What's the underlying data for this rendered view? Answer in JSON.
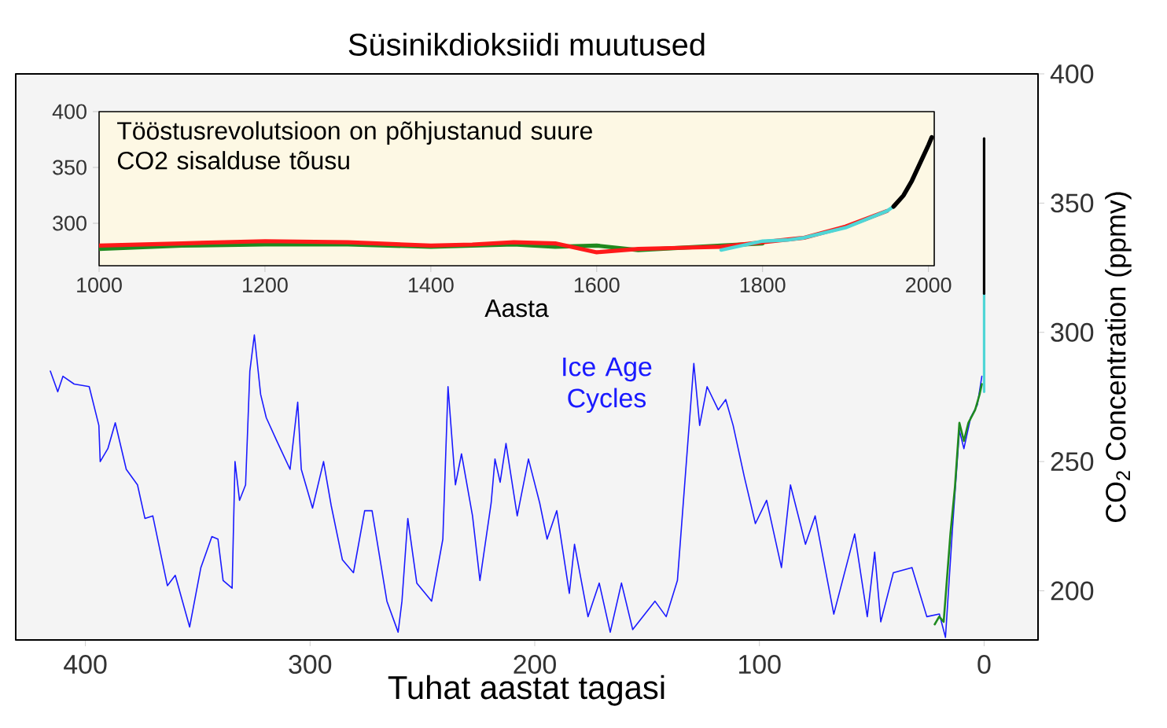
{
  "chart_data": [
    {
      "type": "line",
      "title": "Süsinikdioksiidi muutused",
      "xlabel": "Tuhat aastat tagasi",
      "ylabel": "CO$_{2}$ Concentration (ppmv)",
      "xlim": [
        431,
        -24
      ],
      "ylim": [
        181,
        400
      ],
      "xticks": [
        400,
        300,
        200,
        100,
        0
      ],
      "yticks": [
        200,
        250,
        300,
        350,
        400
      ],
      "marker": "none",
      "series": [
        {
          "name": "Ice Age Cycles",
          "color": "#1a1aff",
          "x": [
            415.6,
            412.3,
            410,
            405,
            398.3,
            394,
            393.4,
            390,
            386.7,
            381.8,
            376.8,
            373.5,
            370,
            363.5,
            360,
            353.6,
            348.6,
            343.7,
            341,
            338.7,
            334.7,
            333.4,
            331.4,
            328.7,
            326.8,
            324.8,
            322,
            319.5,
            314.8,
            308.9,
            305.5,
            303.9,
            298.9,
            294,
            290.6,
            285.6,
            280.7,
            275.7,
            272.4,
            265.8,
            260.8,
            259.1,
            256.5,
            252.5,
            245.9,
            240.9,
            238.6,
            235.3,
            232.6,
            227.7,
            224.4,
            219.4,
            217.7,
            215.4,
            212.8,
            207.8,
            202.8,
            197.8,
            194.5,
            190.2,
            184.6,
            182.3,
            176.3,
            171.3,
            166.4,
            161.4,
            156.4,
            146.5,
            141.5,
            136.5,
            129.2,
            126.6,
            123.3,
            118.3,
            115,
            111.7,
            106.7,
            101.8,
            96.8,
            90.2,
            86.2,
            79.5,
            75.2,
            66.9,
            57.6,
            52,
            48.7,
            46,
            40.4,
            32.1,
            25.5,
            19.9,
            17.2,
            14,
            11,
            9,
            6,
            3,
            1
          ],
          "values": [
            285,
            277,
            283,
            280,
            279,
            264,
            250,
            255,
            265,
            247,
            241,
            228,
            229,
            202,
            206,
            186,
            209,
            221,
            220,
            204,
            201,
            250,
            235,
            241,
            285,
            299,
            276,
            267,
            258,
            247,
            273,
            247,
            232,
            250,
            233,
            212,
            207,
            231,
            231,
            196,
            184,
            196,
            228,
            203,
            196,
            220,
            279,
            241,
            253,
            229,
            204,
            234,
            251,
            242,
            257,
            229,
            251,
            234,
            220,
            231,
            199,
            218,
            190,
            203,
            184,
            203,
            185,
            196,
            190,
            204,
            288,
            264,
            279,
            270,
            274,
            264,
            244,
            226,
            235,
            209,
            241,
            218,
            229,
            191,
            222,
            190,
            215,
            188,
            207,
            209,
            190,
            191,
            182,
            225,
            262,
            255,
            267,
            272,
            283
          ]
        },
        {
          "color": "#1f8a1f",
          "x": [
            22,
            20,
            18,
            15,
            13,
            11,
            9,
            7,
            4,
            2,
            1
          ],
          "values": [
            187,
            190,
            188,
            222,
            240,
            265,
            258,
            265,
            270,
            276,
            280
          ]
        },
        {
          "color": "#4fd6d6",
          "x": [
            0,
            0
          ],
          "values": [
            277,
            315
          ]
        },
        {
          "color": "#000000",
          "x": [
            0,
            0
          ],
          "values": [
            315,
            375
          ]
        }
      ]
    },
    {
      "type": "line",
      "xlabel": "Aasta",
      "xlim": [
        1000,
        2007
      ],
      "ylim": [
        262,
        400
      ],
      "xticks": [
        1000,
        1200,
        1400,
        1600,
        1800,
        2000
      ],
      "yticks": [
        300,
        350,
        400
      ],
      "marker": "none",
      "annotations": [
        "Tööstusrevolutsioon on põhjustanud suure CO2 sisalduse tõusu"
      ],
      "series": [
        {
          "color": "#1f8a1f",
          "x": [
            1000,
            1100,
            1200,
            1300,
            1400,
            1500,
            1550,
            1600,
            1650,
            1700,
            1750,
            1800
          ],
          "values": [
            277,
            280,
            281,
            281,
            279,
            281,
            279,
            280,
            276,
            null,
            280,
            282
          ]
        },
        {
          "color": "#ff1a1a",
          "x": [
            1000,
            1100,
            1200,
            1300,
            1400,
            1450,
            1500,
            1550,
            1600,
            1650,
            1700,
            1750,
            1800,
            1850,
            1900,
            1950
          ],
          "values": [
            280,
            282,
            284,
            283,
            280,
            281,
            283,
            282,
            274,
            277,
            278,
            279,
            283,
            287,
            297,
            311
          ]
        },
        {
          "color": "#4fd6d6",
          "x": [
            1750,
            1800,
            1830,
            1850,
            1900,
            1950,
            1960
          ],
          "values": [
            276,
            284,
            285,
            287,
            296,
            311,
            316
          ]
        },
        {
          "color": "#000000",
          "x": [
            1958,
            1970,
            1980,
            1990,
            2000,
            2004
          ],
          "values": [
            315,
            325,
            338,
            354,
            370,
            377
          ]
        }
      ]
    }
  ]
}
